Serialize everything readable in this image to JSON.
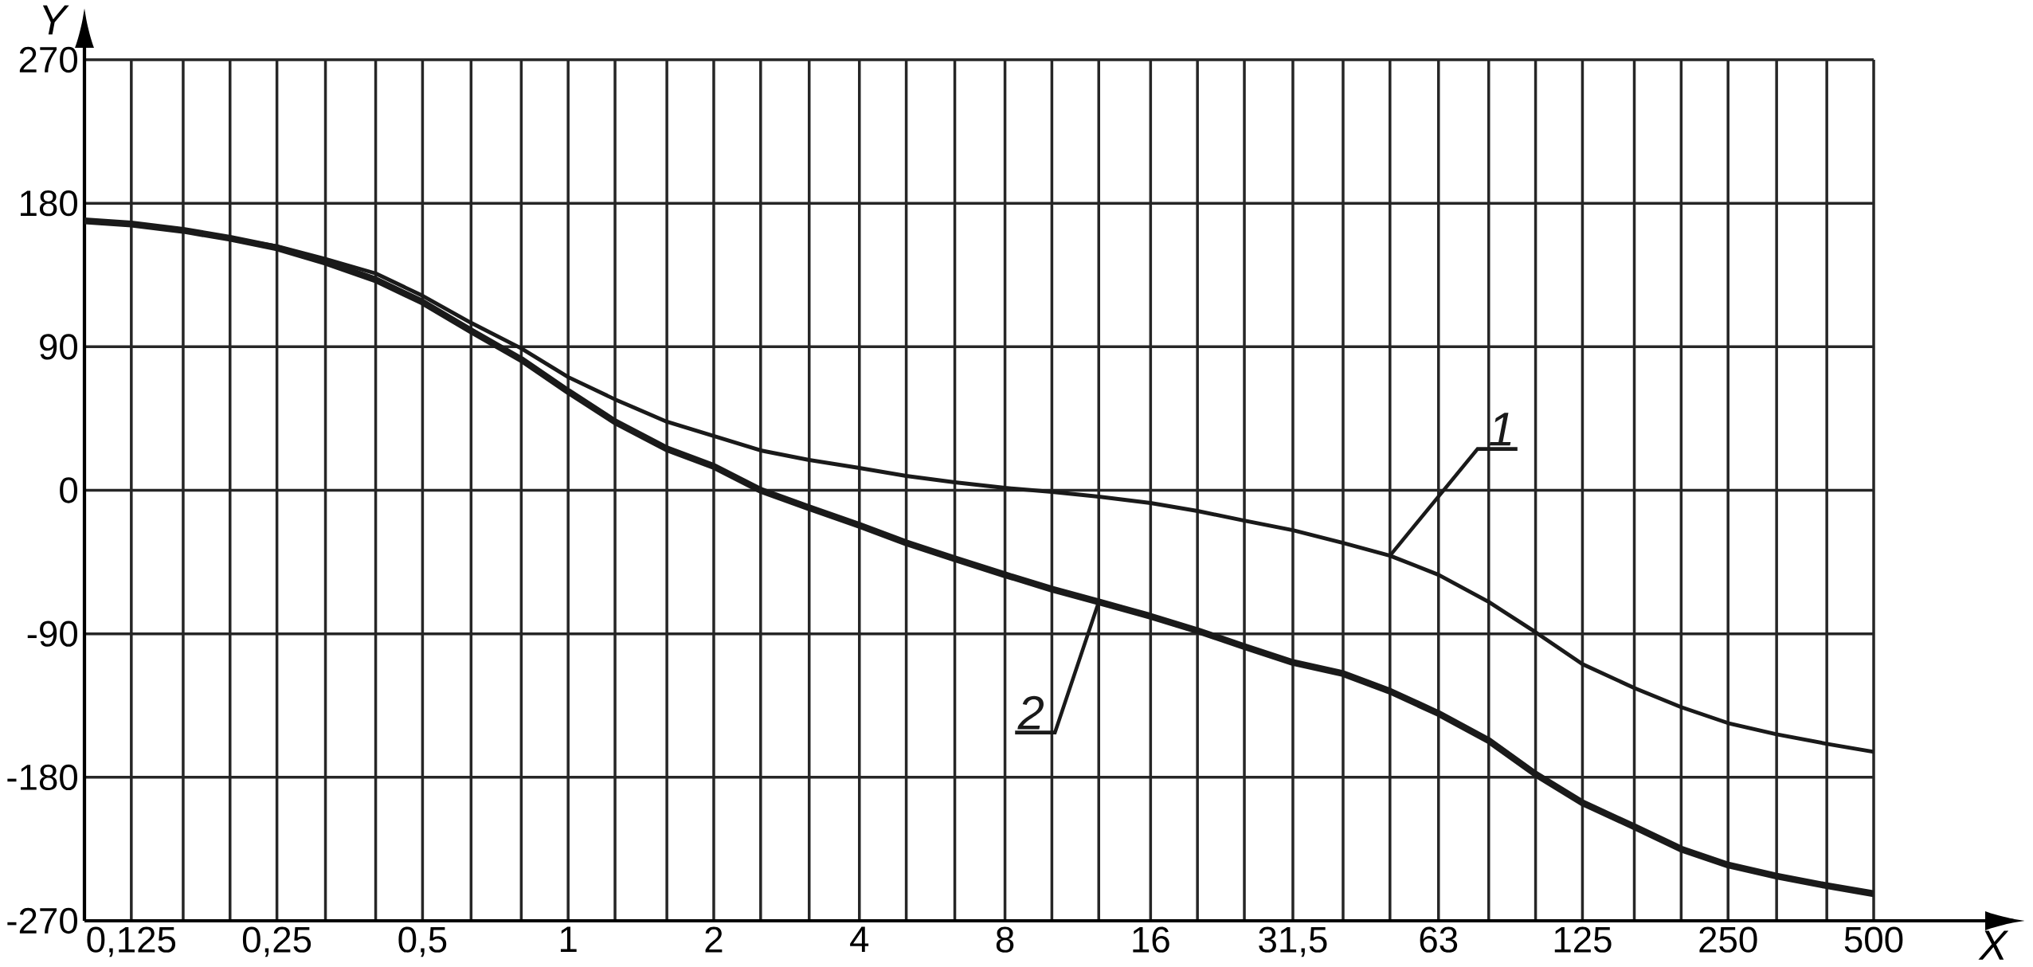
{
  "chart_data": {
    "type": "line",
    "xlabel": "X",
    "ylabel": "Y",
    "log": "x",
    "x": [
      0.1,
      0.125,
      0.16,
      0.2,
      0.25,
      0.315,
      0.4,
      0.5,
      0.63,
      0.8,
      1,
      1.25,
      1.6,
      2,
      2.5,
      3.15,
      4,
      5,
      6.3,
      8,
      10,
      12.5,
      16,
      20,
      25,
      31.5,
      40,
      50,
      63,
      80,
      100,
      125,
      160,
      200,
      250,
      315,
      400,
      500
    ],
    "series": [
      {
        "name": "1",
        "color": "#1a1a1a",
        "values": [
          169,
          167,
          163,
          158,
          153,
          145,
          136,
          122,
          105,
          89,
          71,
          57,
          43,
          34,
          25,
          19,
          14,
          9,
          5,
          1.5,
          -1,
          -4,
          -8,
          -13,
          -19,
          -25,
          -33,
          -41,
          -53,
          -70,
          -89,
          -109,
          -124,
          -136,
          -146,
          -153,
          -159,
          -164
        ]
      },
      {
        "name": "2",
        "color": "#1a1a1a",
        "values": [
          169,
          167,
          163,
          158,
          152,
          143,
          132,
          118,
          100,
          82,
          62,
          43,
          26,
          15,
          0,
          -11,
          -22,
          -33,
          -43,
          -53,
          -62,
          -70,
          -79,
          -88,
          -98,
          -108,
          -115,
          -126,
          -140,
          -157,
          -178,
          -196,
          -211,
          -225,
          -235,
          -242,
          -248,
          -253
        ]
      }
    ],
    "xlim": [
      0.1,
      500
    ],
    "ylim": [
      -270,
      270
    ],
    "xticks": [
      {
        "value": 0.125,
        "label": "0,125"
      },
      {
        "value": 0.16,
        "label": null
      },
      {
        "value": 0.2,
        "label": null
      },
      {
        "value": 0.25,
        "label": "0,25"
      },
      {
        "value": 0.315,
        "label": null
      },
      {
        "value": 0.4,
        "label": null
      },
      {
        "value": 0.5,
        "label": "0,5"
      },
      {
        "value": 0.63,
        "label": null
      },
      {
        "value": 0.8,
        "label": null
      },
      1,
      {
        "value": 1.25,
        "label": null
      },
      {
        "value": 1.6,
        "label": null
      },
      2,
      {
        "value": 2.5,
        "label": null
      },
      {
        "value": 3.15,
        "label": null
      },
      4,
      {
        "value": 5,
        "label": null
      },
      {
        "value": 6.3,
        "label": null
      },
      8,
      {
        "value": 10,
        "label": null
      },
      {
        "value": 12.5,
        "label": null
      },
      16,
      {
        "value": 20,
        "label": null
      },
      {
        "value": 25,
        "label": null
      },
      {
        "value": 31.5,
        "label": "31,5"
      },
      {
        "value": 40,
        "label": null
      },
      {
        "value": 50,
        "label": null
      },
      63,
      {
        "value": 80,
        "label": null
      },
      {
        "value": 100,
        "label": null
      },
      125,
      {
        "value": 160,
        "label": null
      },
      {
        "value": 200,
        "label": null
      },
      250,
      {
        "value": 315,
        "label": null
      },
      {
        "value": 400,
        "label": null
      },
      500
    ],
    "yticks": [
      -270,
      -180,
      -90,
      0,
      90,
      180,
      270
    ],
    "grid": true
  }
}
